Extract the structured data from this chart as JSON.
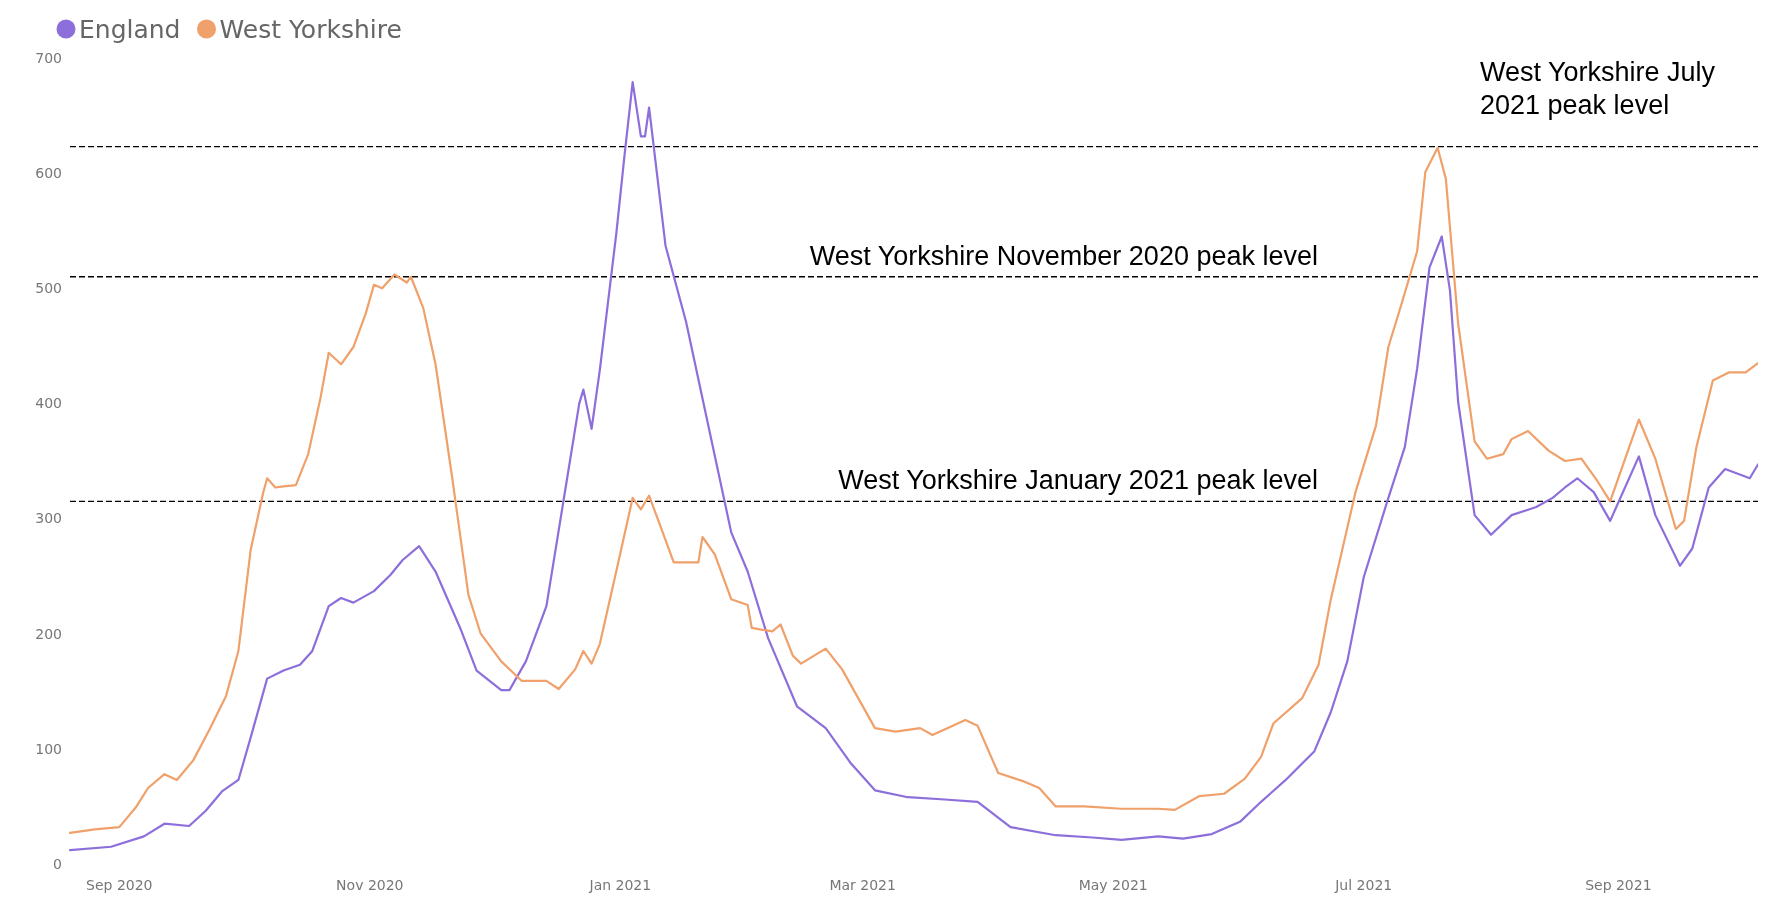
{
  "chart_data": {
    "type": "line",
    "legend": "top left",
    "line_style": "solid",
    "marker": "none",
    "xlim": [
      "2020-08-20",
      "2021-10-05"
    ],
    "xticks": [
      {
        "value": "2020-09-01",
        "label": "Sep 2020"
      },
      {
        "value": "2020-11-01",
        "label": "Nov 2020"
      },
      {
        "value": "2021-01-01",
        "label": "Jan 2021"
      },
      {
        "value": "2021-03-01",
        "label": "Mar 2021"
      },
      {
        "value": "2021-05-01",
        "label": "May 2021"
      },
      {
        "value": "2021-07-01",
        "label": "Jul 2021"
      },
      {
        "value": "2021-09-01",
        "label": "Sep 2021"
      }
    ],
    "ylim": [
      0,
      700
    ],
    "yticks": [
      0,
      100,
      200,
      300,
      400,
      500,
      600,
      700
    ],
    "series": [
      {
        "name": "England",
        "color": "#8c6fda",
        "x": [
          "2020-08-20",
          "2020-08-30",
          "2020-09-07",
          "2020-09-12",
          "2020-09-18",
          "2020-09-22",
          "2020-09-26",
          "2020-09-30",
          "2020-10-03",
          "2020-10-07",
          "2020-10-11",
          "2020-10-15",
          "2020-10-18",
          "2020-10-22",
          "2020-10-25",
          "2020-10-28",
          "2020-11-02",
          "2020-11-06",
          "2020-11-09",
          "2020-11-13",
          "2020-11-17",
          "2020-11-23",
          "2020-11-27",
          "2020-12-03",
          "2020-12-05",
          "2020-12-09",
          "2020-12-14",
          "2020-12-18",
          "2020-12-22",
          "2020-12-23",
          "2020-12-25",
          "2020-12-27",
          "2020-12-31",
          "2021-01-02",
          "2021-01-04",
          "2021-01-06",
          "2021-01-07",
          "2021-01-08",
          "2021-01-12",
          "2021-01-17",
          "2021-01-23",
          "2021-01-28",
          "2021-02-01",
          "2021-02-06",
          "2021-02-13",
          "2021-02-20",
          "2021-02-26",
          "2021-03-04",
          "2021-03-12",
          "2021-03-21",
          "2021-03-29",
          "2021-04-06",
          "2021-04-17",
          "2021-04-26",
          "2021-05-03",
          "2021-05-12",
          "2021-05-18",
          "2021-05-25",
          "2021-06-01",
          "2021-06-06",
          "2021-06-12",
          "2021-06-19",
          "2021-06-23",
          "2021-06-27",
          "2021-07-01",
          "2021-07-07",
          "2021-07-11",
          "2021-07-14",
          "2021-07-17",
          "2021-07-20",
          "2021-07-22",
          "2021-07-24",
          "2021-07-28",
          "2021-08-01",
          "2021-08-06",
          "2021-08-12",
          "2021-08-16",
          "2021-08-19",
          "2021-08-22",
          "2021-08-26",
          "2021-08-30",
          "2021-09-06",
          "2021-09-10",
          "2021-09-16",
          "2021-09-19",
          "2021-09-23",
          "2021-09-27",
          "2021-10-03",
          "2021-10-05"
        ],
        "values": [
          12,
          15,
          24,
          35,
          33,
          46,
          63,
          73,
          110,
          161,
          168,
          173,
          185,
          224,
          231,
          227,
          237,
          251,
          264,
          276,
          254,
          205,
          168,
          151,
          151,
          176,
          224,
          312,
          400,
          412,
          378,
          429,
          547,
          615,
          679,
          632,
          632,
          657,
          537,
          471,
          371,
          288,
          254,
          196,
          137,
          118,
          88,
          64,
          58,
          56,
          54,
          32,
          25,
          23,
          21,
          24,
          22,
          26,
          37,
          54,
          73,
          98,
          132,
          176,
          249,
          318,
          362,
          430,
          518,
          545,
          498,
          401,
          303,
          286,
          303,
          310,
          318,
          327,
          335,
          323,
          298,
          354,
          303,
          259,
          274,
          327,
          343,
          335,
          347
        ]
      },
      {
        "name": "West Yorkshire",
        "color": "#f0a06a",
        "x": [
          "2020-08-20",
          "2020-08-26",
          "2020-09-01",
          "2020-09-05",
          "2020-09-08",
          "2020-09-12",
          "2020-09-15",
          "2020-09-19",
          "2020-09-23",
          "2020-09-27",
          "2020-09-30",
          "2020-10-03",
          "2020-10-06",
          "2020-10-07",
          "2020-10-09",
          "2020-10-11",
          "2020-10-14",
          "2020-10-17",
          "2020-10-20",
          "2020-10-22",
          "2020-10-25",
          "2020-10-28",
          "2020-10-31",
          "2020-11-02",
          "2020-11-04",
          "2020-11-07",
          "2020-11-10",
          "2020-11-11",
          "2020-11-14",
          "2020-11-17",
          "2020-11-21",
          "2020-11-25",
          "2020-11-28",
          "2020-12-03",
          "2020-12-08",
          "2020-12-14",
          "2020-12-17",
          "2020-12-21",
          "2020-12-23",
          "2020-12-25",
          "2020-12-27",
          "2020-12-31",
          "2021-01-04",
          "2021-01-06",
          "2021-01-08",
          "2021-01-11",
          "2021-01-14",
          "2021-01-20",
          "2021-01-21",
          "2021-01-24",
          "2021-01-28",
          "2021-02-01",
          "2021-02-02",
          "2021-02-07",
          "2021-02-09",
          "2021-02-12",
          "2021-02-14",
          "2021-02-20",
          "2021-02-24",
          "2021-03-04",
          "2021-03-09",
          "2021-03-15",
          "2021-03-18",
          "2021-03-26",
          "2021-03-29",
          "2021-04-03",
          "2021-04-09",
          "2021-04-13",
          "2021-04-17",
          "2021-04-24",
          "2021-05-03",
          "2021-05-12",
          "2021-05-16",
          "2021-05-22",
          "2021-05-28",
          "2021-06-02",
          "2021-06-06",
          "2021-06-09",
          "2021-06-16",
          "2021-06-20",
          "2021-06-23",
          "2021-06-29",
          "2021-07-04",
          "2021-07-07",
          "2021-07-10",
          "2021-07-14",
          "2021-07-16",
          "2021-07-19",
          "2021-07-21",
          "2021-07-24",
          "2021-07-28",
          "2021-07-31",
          "2021-08-04",
          "2021-08-06",
          "2021-08-10",
          "2021-08-15",
          "2021-08-19",
          "2021-08-23",
          "2021-08-27",
          "2021-08-30",
          "2021-09-06",
          "2021-09-10",
          "2021-09-15",
          "2021-09-17",
          "2021-09-20",
          "2021-09-24",
          "2021-09-28",
          "2021-10-02",
          "2021-10-05"
        ],
        "values": [
          27,
          30,
          32,
          49,
          66,
          78,
          73,
          90,
          117,
          146,
          185,
          273,
          322,
          335,
          327,
          328,
          329,
          356,
          405,
          444,
          434,
          449,
          478,
          503,
          500,
          512,
          505,
          510,
          483,
          434,
          337,
          234,
          200,
          176,
          159,
          159,
          152,
          169,
          185,
          174,
          191,
          254,
          318,
          308,
          320,
          291,
          262,
          262,
          284,
          269,
          230,
          225,
          205,
          202,
          208,
          181,
          174,
          187,
          169,
          118,
          115,
          118,
          112,
          125,
          120,
          79,
          72,
          66,
          50,
          50,
          48,
          48,
          47,
          59,
          61,
          74,
          93,
          122,
          144,
          173,
          230,
          323,
          381,
          449,
          484,
          532,
          601,
          622,
          595,
          469,
          367,
          352,
          356,
          369,
          376,
          359,
          350,
          352,
          332,
          315,
          386,
          352,
          291,
          298,
          362,
          420,
          427,
          427,
          435
        ]
      }
    ],
    "ref_lines": [
      {
        "axis": "y",
        "value": 510,
        "label": "West Yorkshire November 2020 peak level",
        "color": "#000000",
        "line_style": "dashed"
      },
      {
        "axis": "y",
        "value": 315,
        "label": "West Yorkshire January 2021 peak level",
        "color": "#000000",
        "line_style": "dashed"
      },
      {
        "axis": "y",
        "value": 623,
        "label": "West Yorkshire July 2021 peak level",
        "color": "#000000",
        "line_style": "dashed"
      }
    ]
  }
}
